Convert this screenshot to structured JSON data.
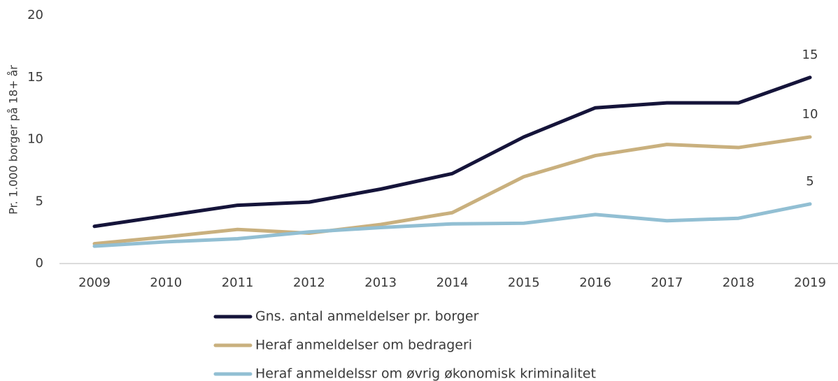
{
  "chart_data": {
    "type": "line",
    "y_label": "Pr. 1.000 borger på 18+ år",
    "categories": [
      "2009",
      "2010",
      "2011",
      "2012",
      "2013",
      "2014",
      "2015",
      "2016",
      "2017",
      "2018",
      "2019"
    ],
    "series": [
      {
        "name": "Gns. antal anmeldelser pr. borger",
        "color": "#15143a",
        "values": [
          3.0,
          3.85,
          4.7,
          4.95,
          6.0,
          7.25,
          10.2,
          12.55,
          12.95,
          12.95,
          15.0
        ],
        "value_labels": [
          null,
          null,
          null,
          null,
          null,
          null,
          null,
          null,
          null,
          null,
          "15"
        ]
      },
      {
        "name": "Heraf anmeldelser om bedrageri",
        "color": "#c9b07e",
        "values": [
          1.6,
          2.15,
          2.75,
          2.45,
          3.15,
          4.1,
          7.0,
          8.7,
          9.6,
          9.35,
          10.2
        ],
        "value_labels": [
          null,
          null,
          null,
          null,
          null,
          null,
          null,
          null,
          null,
          null,
          "10"
        ]
      },
      {
        "name": "Heraf anmeldelssr om øvrig økonomisk kriminalitet",
        "color": "#92bfd3",
        "values": [
          1.4,
          1.75,
          2.0,
          2.55,
          2.9,
          3.2,
          3.25,
          3.95,
          3.45,
          3.65,
          4.8
        ],
        "value_labels": [
          null,
          null,
          null,
          null,
          null,
          null,
          null,
          null,
          null,
          null,
          "5"
        ]
      }
    ],
    "ylim": [
      0,
      20
    ],
    "yticks": [
      0,
      5,
      10,
      15,
      20
    ],
    "grid": false
  }
}
